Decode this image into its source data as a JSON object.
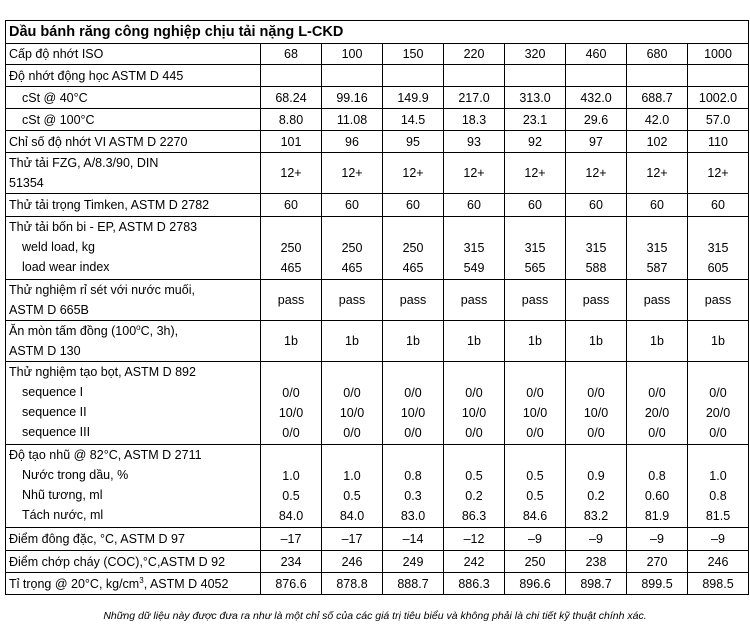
{
  "title": "Dầu bánh răng công nghiệp chịu tải nặng L-CKD",
  "grades_label": "Cấp độ nhớt ISO",
  "grades": [
    "68",
    "100",
    "150",
    "220",
    "320",
    "460",
    "680",
    "1000"
  ],
  "visc_label": "Độ nhớt động học ASTM D 445",
  "cst40_label": "cSt @ 40°C",
  "cst40": [
    "68.24",
    "99.16",
    "149.9",
    "217.0",
    "313.0",
    "432.0",
    "688.7",
    "1002.0"
  ],
  "cst100_label": "cSt @ 100°C",
  "cst100": [
    "8.80",
    "11.08",
    "14.5",
    "18.3",
    "23.1",
    "29.6",
    "42.0",
    "57.0"
  ],
  "vi_label": "Chỉ số độ nhớt VI ASTM D 2270",
  "vi": [
    "101",
    "96",
    "95",
    "93",
    "92",
    "97",
    "102",
    "110"
  ],
  "fzg_label_1": "Thử tải FZG, A/8.3/90, DIN",
  "fzg_label_2": "51354",
  "fzg": [
    "12+",
    "12+",
    "12+",
    "12+",
    "12+",
    "12+",
    "12+",
    "12+"
  ],
  "timken_label": "Thử tải trọng Timken, ASTM D 2782",
  "timken": [
    "60",
    "60",
    "60",
    "60",
    "60",
    "60",
    "60",
    "60"
  ],
  "fourball_label": "Thử tải bốn bi - EP, ASTM D 2783",
  "weld_label": "weld load, kg",
  "weld": [
    "250",
    "250",
    "250",
    "315",
    "315",
    "315",
    "315",
    "315"
  ],
  "lwi_label": "load wear index",
  "lwi": [
    "465",
    "465",
    "465",
    "549",
    "565",
    "588",
    "587",
    "605"
  ],
  "rust_label_1": "Thử nghiệm rỉ sét với nước muối,",
  "rust_label_2": "ASTM D 665B",
  "rust": [
    "pass",
    "pass",
    "pass",
    "pass",
    "pass",
    "pass",
    "pass",
    "pass"
  ],
  "copper_label_1": "Ăn mòn tấm đồng (100",
  "copper_sup": "o",
  "copper_label_1b": "C, 3h),",
  "copper_label_2": "ASTM D 130",
  "copper": [
    "1b",
    "1b",
    "1b",
    "1b",
    "1b",
    "1b",
    "1b",
    "1b"
  ],
  "foam_label": "Thử nghiệm tạo bọt, ASTM D 892",
  "seq1_label": "sequence I",
  "seq1": [
    "0/0",
    "0/0",
    "0/0",
    "0/0",
    "0/0",
    "0/0",
    "0/0",
    "0/0"
  ],
  "seq2_label": "sequence II",
  "seq2": [
    "10/0",
    "10/0",
    "10/0",
    "10/0",
    "10/0",
    "10/0",
    "20/0",
    "20/0"
  ],
  "seq3_label": "sequence III",
  "seq3": [
    "0/0",
    "0/0",
    "0/0",
    "0/0",
    "0/0",
    "0/0",
    "0/0",
    "0/0"
  ],
  "emul_label": "Độ tạo nhũ @ 82°C, ASTM D 2711",
  "water_label": "Nước trong dầu, %",
  "water": [
    "1.0",
    "1.0",
    "0.8",
    "0.5",
    "0.5",
    "0.9",
    "0.8",
    "1.0"
  ],
  "emulsion_label": "Nhũ tương, ml",
  "emulsion": [
    "0.5",
    "0.5",
    "0.3",
    "0.2",
    "0.5",
    "0.2",
    "0.60",
    "0.8"
  ],
  "sep_label": "Tách nước, ml",
  "sep": [
    "84.0",
    "84.0",
    "83.0",
    "86.3",
    "84.6",
    "83.2",
    "81.9",
    "81.5"
  ],
  "pour_label": "Điểm đông đặc, °C, ASTM D 97",
  "pour": [
    "–17",
    "–17",
    "–14",
    "–12",
    "–9",
    "–9",
    "–9",
    "–9"
  ],
  "flash_label": "Điểm chớp cháy (COC),°C,ASTM D 92",
  "flash": [
    "234",
    "246",
    "249",
    "242",
    "250",
    "238",
    "270",
    "246"
  ],
  "density_label_a": "Tỉ trọng @ 20°C, kg/cm",
  "density_sup": "3",
  "density_label_b": ", ASTM D 4052",
  "density": [
    "876.6",
    "878.8",
    "888.7",
    "886.3",
    "896.6",
    "898.7",
    "899.5",
    "898.5"
  ],
  "note": "Những dữ liệu này được đưa ra như là một chỉ số của các giá trị tiêu biểu và không phải là chi tiết kỹ thuật chính xác."
}
